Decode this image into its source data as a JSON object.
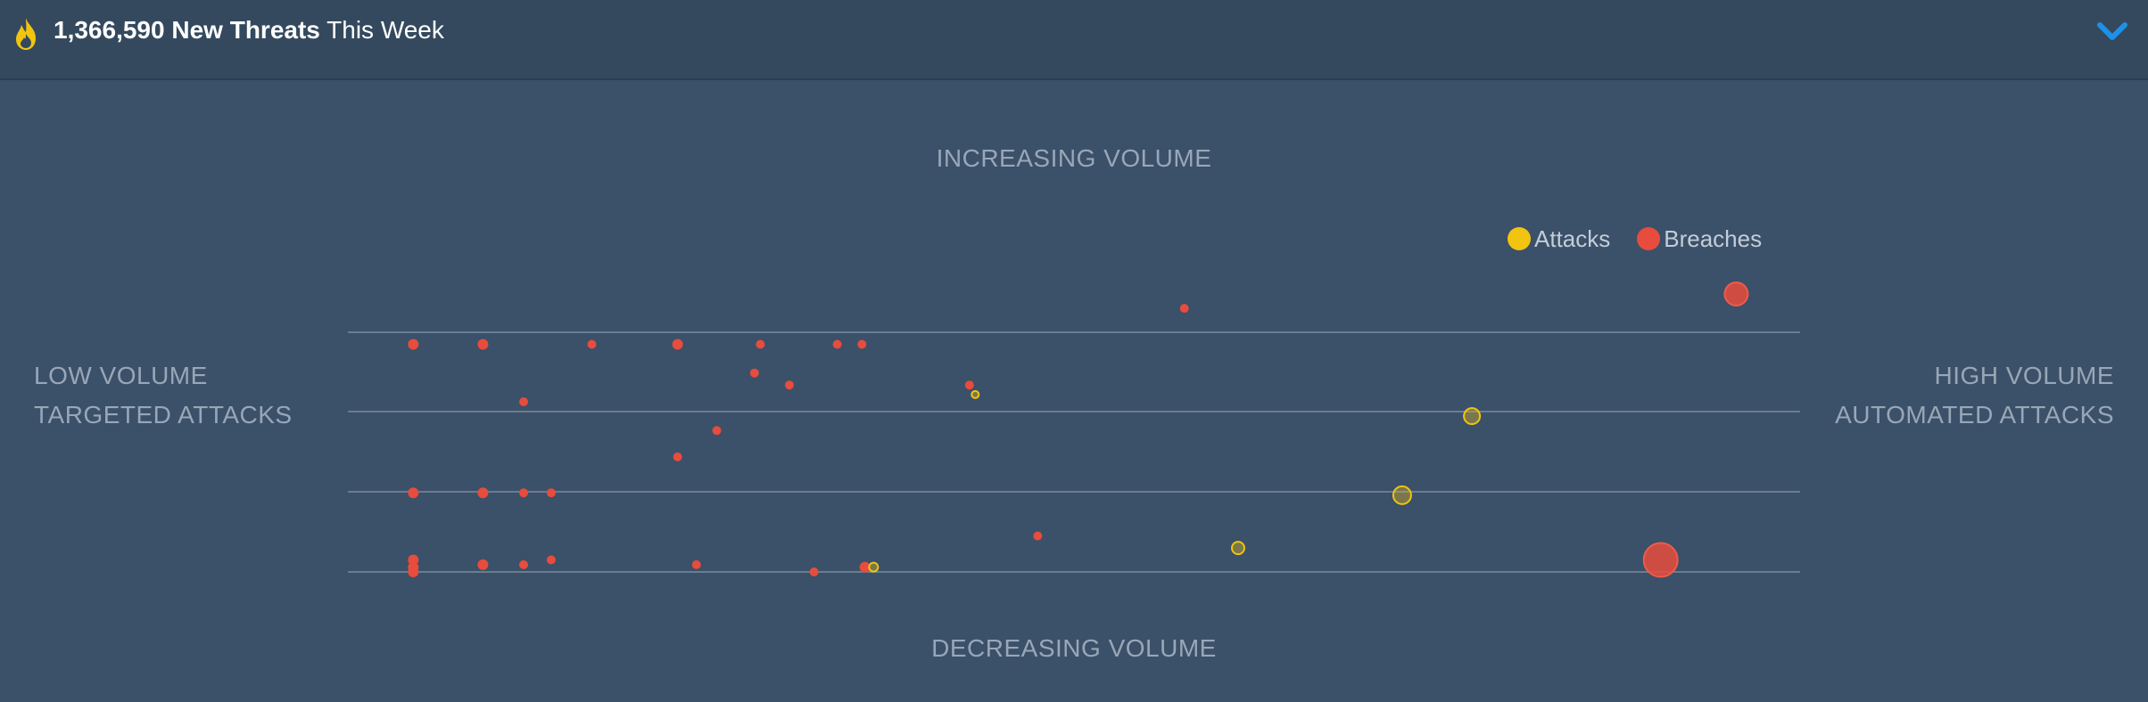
{
  "header": {
    "count": "1,366,590",
    "label_bold": "New Threats",
    "label_regular": "This Week",
    "icon": "flame-icon",
    "toggle_icon": "chevron-down-icon"
  },
  "axes": {
    "top": "INCREASING VOLUME",
    "bottom": "DECREASING VOLUME",
    "left_line1": "LOW VOLUME",
    "left_line2": "TARGETED ATTACKS",
    "right_line1": "HIGH VOLUME",
    "right_line2": "AUTOMATED ATTACKS"
  },
  "legend": {
    "attacks": "Attacks",
    "breaches": "Breaches"
  },
  "colors": {
    "attacks": "#f1c40f",
    "breaches": "#e74c3c",
    "background": "#3b5069",
    "header": "#34495e"
  },
  "chart_data": {
    "type": "scatter",
    "grid": true,
    "legend_position": "top-right",
    "series": [
      {
        "name": "Attacks",
        "color": "#f1c40f",
        "points": [
          {
            "x": 0.432,
            "y": 0.74,
            "r": 4
          },
          {
            "x": 0.774,
            "y": 0.65,
            "r": 9
          },
          {
            "x": 0.726,
            "y": 0.32,
            "r": 10
          },
          {
            "x": 0.613,
            "y": 0.1,
            "r": 7
          },
          {
            "x": 0.362,
            "y": 0.02,
            "r": 5
          }
        ]
      },
      {
        "name": "Breaches",
        "color": "#e74c3c",
        "points": [
          {
            "x": 0.045,
            "y": 0.95,
            "r": 6
          },
          {
            "x": 0.093,
            "y": 0.95,
            "r": 6
          },
          {
            "x": 0.168,
            "y": 0.95,
            "r": 5
          },
          {
            "x": 0.227,
            "y": 0.95,
            "r": 6
          },
          {
            "x": 0.284,
            "y": 0.95,
            "r": 5
          },
          {
            "x": 0.337,
            "y": 0.95,
            "r": 5
          },
          {
            "x": 0.354,
            "y": 0.95,
            "r": 5
          },
          {
            "x": 0.576,
            "y": 1.1,
            "r": 5
          },
          {
            "x": 0.956,
            "y": 1.16,
            "r": 13
          },
          {
            "x": 0.28,
            "y": 0.83,
            "r": 5
          },
          {
            "x": 0.304,
            "y": 0.78,
            "r": 5
          },
          {
            "x": 0.428,
            "y": 0.78,
            "r": 5
          },
          {
            "x": 0.121,
            "y": 0.71,
            "r": 5
          },
          {
            "x": 0.254,
            "y": 0.59,
            "r": 5
          },
          {
            "x": 0.227,
            "y": 0.48,
            "r": 5
          },
          {
            "x": 0.045,
            "y": 0.33,
            "r": 6
          },
          {
            "x": 0.093,
            "y": 0.33,
            "r": 6
          },
          {
            "x": 0.121,
            "y": 0.33,
            "r": 5
          },
          {
            "x": 0.14,
            "y": 0.33,
            "r": 5
          },
          {
            "x": 0.475,
            "y": 0.15,
            "r": 5
          },
          {
            "x": 0.904,
            "y": 0.05,
            "r": 19
          },
          {
            "x": 0.045,
            "y": 0.05,
            "r": 6
          },
          {
            "x": 0.045,
            "y": 0.02,
            "r": 6
          },
          {
            "x": 0.045,
            "y": 0.0,
            "r": 6
          },
          {
            "x": 0.093,
            "y": 0.03,
            "r": 6
          },
          {
            "x": 0.121,
            "y": 0.03,
            "r": 5
          },
          {
            "x": 0.14,
            "y": 0.05,
            "r": 5
          },
          {
            "x": 0.24,
            "y": 0.03,
            "r": 5
          },
          {
            "x": 0.321,
            "y": 0.0,
            "r": 5
          },
          {
            "x": 0.356,
            "y": 0.02,
            "r": 6
          }
        ]
      }
    ]
  }
}
